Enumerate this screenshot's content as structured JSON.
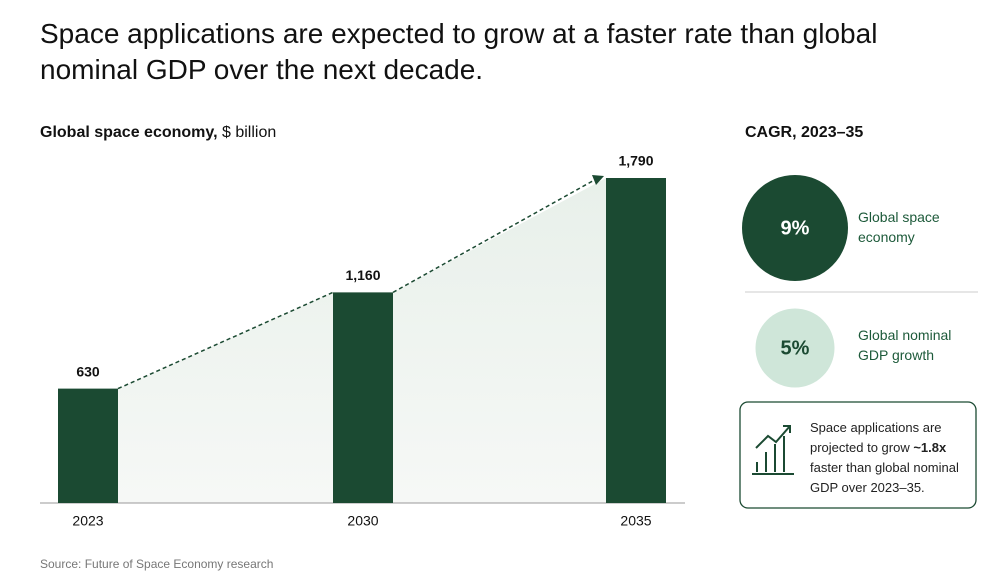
{
  "chart_data": {
    "type": "bar",
    "title": "Space applications are expected to grow at a faster rate than global nominal GDP over the next decade.",
    "subtitle": "Global space economy,",
    "unit": "$ billion",
    "categories": [
      "2023",
      "2030",
      "2035"
    ],
    "values": [
      630,
      1160,
      1790
    ],
    "value_labels": [
      "630",
      "1,160",
      "1,790"
    ],
    "color": "#1b4a32",
    "cagr": {
      "title": "CAGR, 2023–35",
      "items": [
        {
          "value": 9,
          "label": "9%",
          "text": "Global space economy",
          "color": "#1b4a32"
        },
        {
          "value": 5,
          "label": "5%",
          "text": "Global nominal GDP growth",
          "color": "#cfe6d9"
        }
      ]
    },
    "callout": [
      "Space applications are projected to grow ",
      "~1.8x",
      " faster than global nominal GDP over 2023–35."
    ],
    "source": "Source: Future of Space Economy research"
  }
}
